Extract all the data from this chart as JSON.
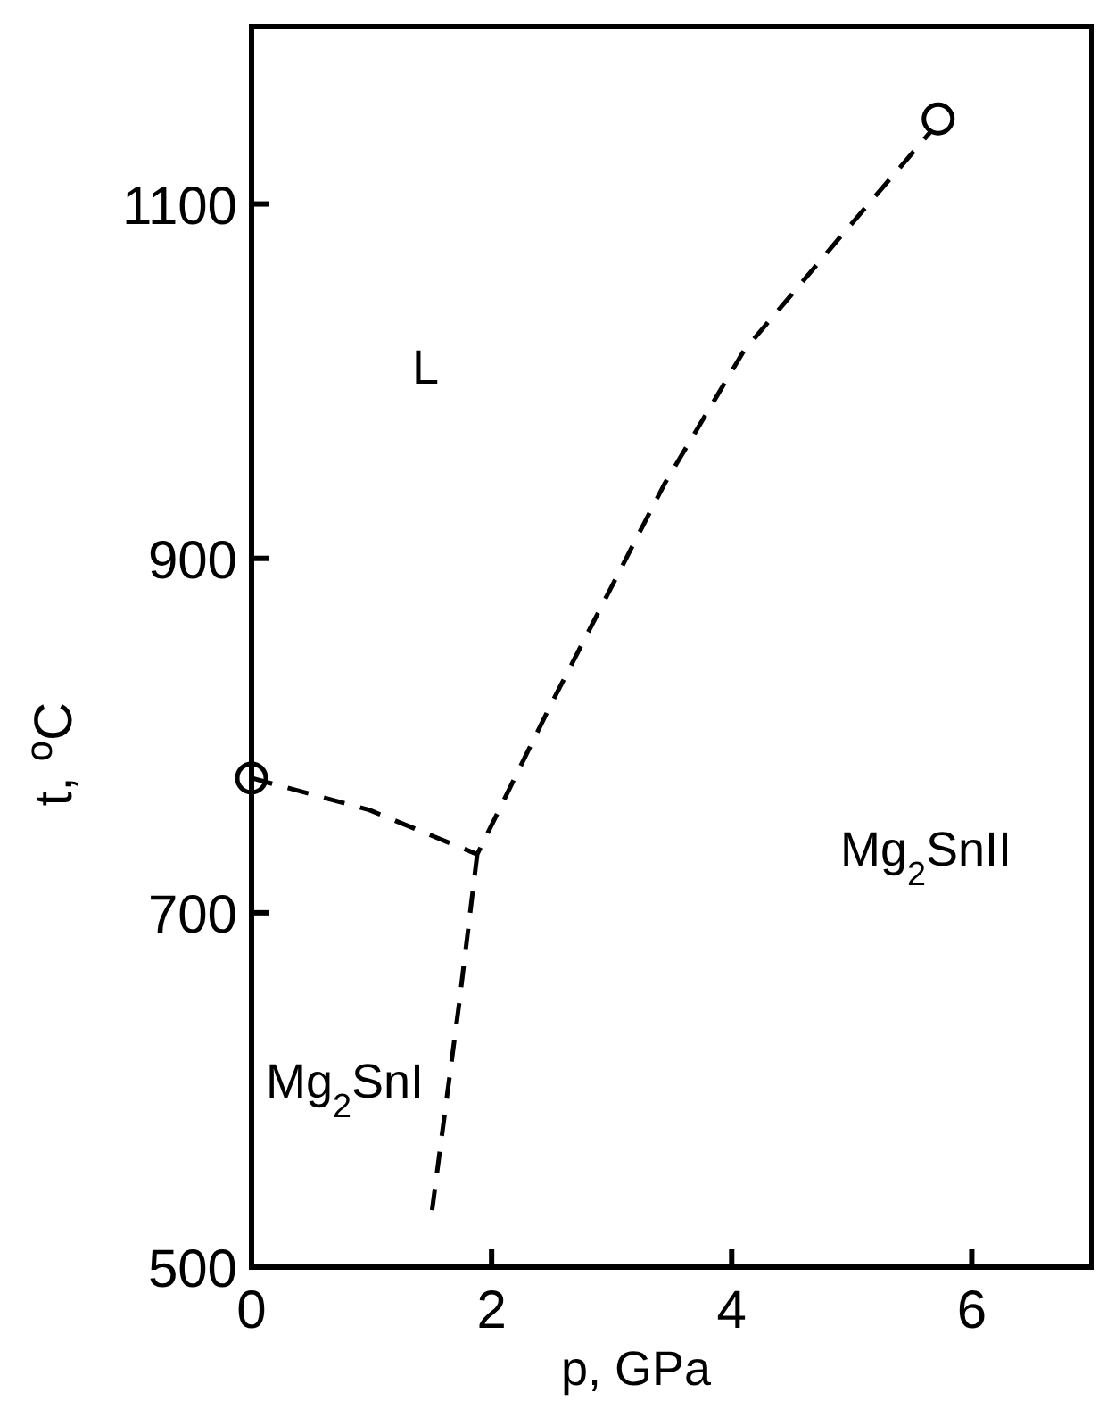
{
  "chart_data": {
    "type": "line",
    "xlabel": "p, GPa",
    "ylabel": "t, $^{o}$C",
    "xlim": [
      0,
      7
    ],
    "ylim": [
      500,
      1200
    ],
    "xticks": [
      0,
      2,
      4,
      6
    ],
    "yticks": [
      500,
      700,
      900,
      1100
    ],
    "grid": false,
    "line_style": "dashed",
    "marker": "none",
    "series": [
      {
        "color": "#000000",
        "x": [
          0,
          0.98,
          1.88,
          2.49,
          3.44,
          4.1,
          4.95,
          5.66,
          null,
          1.88,
          1.73,
          1.5
        ],
        "values": [
          776,
          758,
          733,
          817,
          942,
          1017,
          1085,
          1141,
          null,
          733,
          649,
          530
        ]
      },
      {
        "type": "scatter",
        "marker": "circle",
        "color": "#000000",
        "x": [
          0,
          5.72
        ],
        "values": [
          776,
          1148
        ]
      }
    ],
    "annotations": [
      "L",
      "Mg$_{2}$SnII",
      "Mg$_{2}$SnI"
    ]
  }
}
